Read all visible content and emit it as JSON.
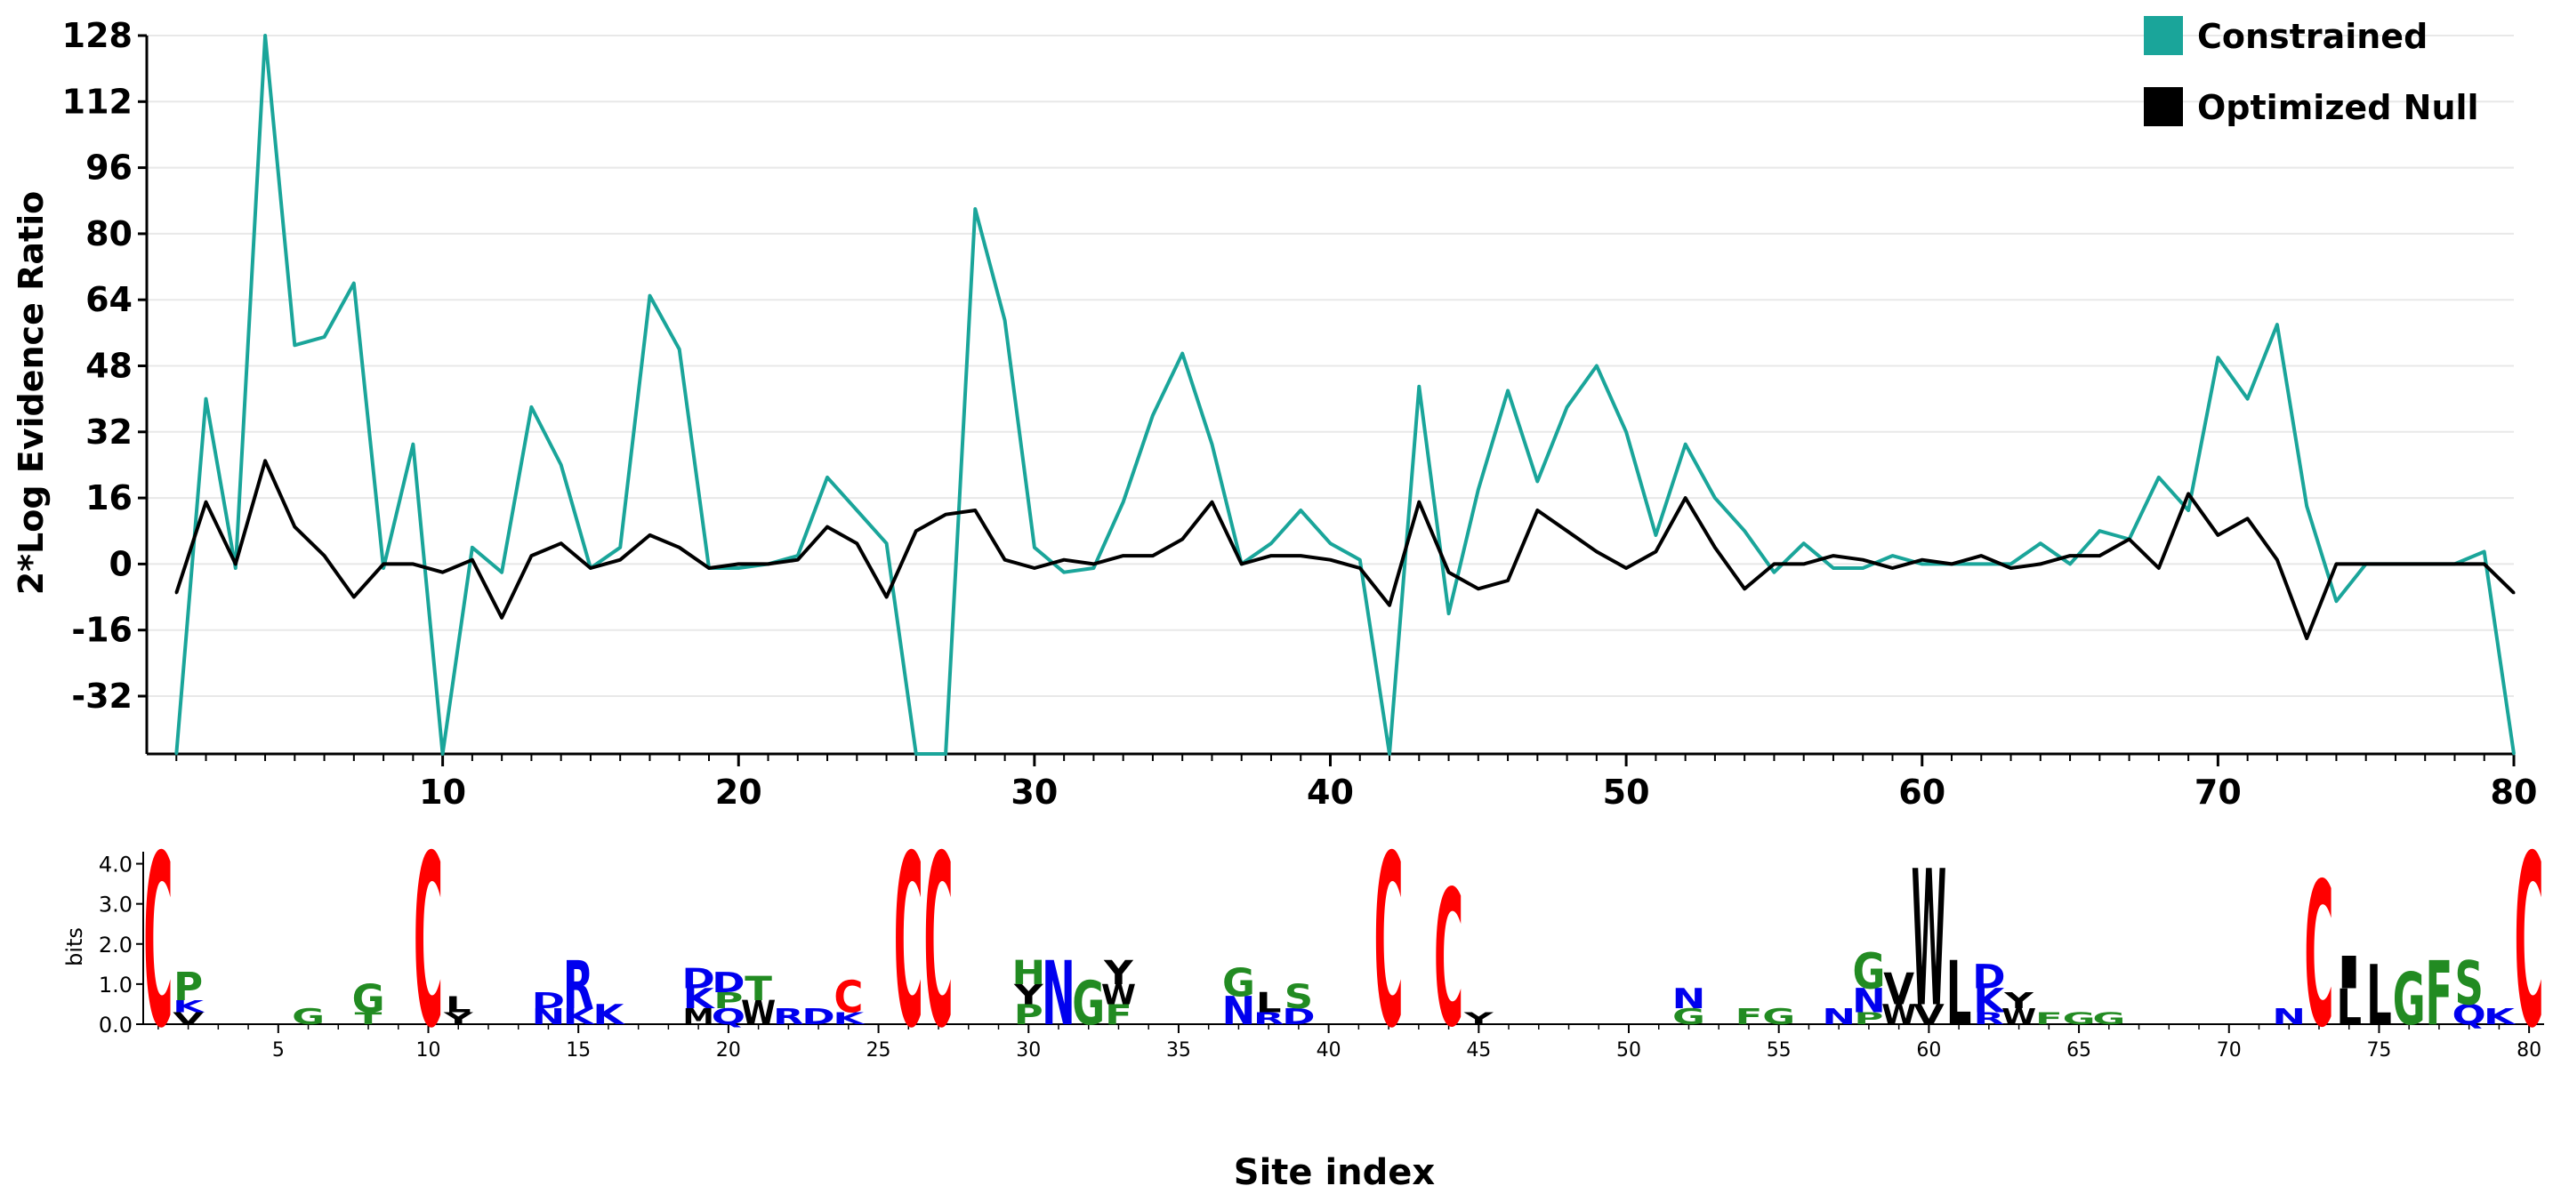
{
  "chart_data": [
    {
      "type": "line",
      "ylabel": "2*Log Evidence Ratio",
      "xlabel": "Site index",
      "ylim": [
        -46,
        128
      ],
      "xlim": [
        0,
        80
      ],
      "y_ticks": [
        "128",
        "112",
        "96",
        "80",
        "64",
        "48",
        "32",
        "16",
        "0",
        "-16",
        "-32"
      ],
      "x_ticks": [
        "10",
        "20",
        "30",
        "40",
        "50",
        "60",
        "70",
        "80"
      ],
      "grid": true,
      "legend": [
        {
          "name": "Constrained",
          "color": "#1aa59a"
        },
        {
          "name": "Optimized Null",
          "color": "#000000"
        }
      ],
      "x": [
        1,
        2,
        3,
        4,
        5,
        6,
        7,
        8,
        9,
        10,
        11,
        12,
        13,
        14,
        15,
        16,
        17,
        18,
        19,
        20,
        21,
        22,
        23,
        24,
        25,
        26,
        27,
        28,
        29,
        30,
        31,
        32,
        33,
        34,
        35,
        36,
        37,
        38,
        39,
        40,
        41,
        42,
        43,
        44,
        45,
        46,
        47,
        48,
        49,
        50,
        51,
        52,
        53,
        54,
        55,
        56,
        57,
        58,
        59,
        60,
        61,
        62,
        63,
        64,
        65,
        66,
        67,
        68,
        69,
        70,
        71,
        72,
        73,
        74,
        75,
        76,
        77,
        78,
        79,
        80
      ],
      "series": [
        {
          "name": "Constrained",
          "color": "#1aa59a",
          "values": [
            -46,
            40,
            -1,
            128,
            53,
            55,
            68,
            -1,
            29,
            -46,
            4,
            -2,
            38,
            24,
            -1,
            4,
            65,
            52,
            -1,
            -1,
            0,
            2,
            21,
            13,
            5,
            -46,
            -46,
            86,
            59,
            4,
            -2,
            -1,
            15,
            36,
            51,
            29,
            0,
            5,
            13,
            5,
            1,
            -46,
            43,
            -12,
            18,
            42,
            20,
            38,
            48,
            32,
            7,
            29,
            16,
            8,
            -2,
            5,
            -1,
            -1,
            2,
            0,
            0,
            0,
            0,
            5,
            0,
            8,
            6,
            21,
            13,
            50,
            40,
            58,
            14,
            -9,
            0,
            0,
            0,
            0,
            3,
            -46
          ]
        },
        {
          "name": "Optimized Null",
          "color": "#000000",
          "values": [
            -7,
            15,
            0,
            25,
            9,
            2,
            -8,
            0,
            0,
            -2,
            1,
            -13,
            2,
            5,
            -1,
            1,
            7,
            4,
            -1,
            0,
            0,
            1,
            9,
            5,
            -8,
            8,
            12,
            13,
            1,
            -1,
            1,
            0,
            2,
            2,
            6,
            15,
            0,
            2,
            2,
            1,
            -1,
            -10,
            15,
            -2,
            -6,
            -4,
            13,
            8,
            3,
            -1,
            3,
            16,
            4,
            -6,
            0,
            0,
            2,
            1,
            -1,
            1,
            0,
            2,
            -1,
            0,
            2,
            2,
            6,
            -1,
            17,
            7,
            11,
            1,
            -18,
            0,
            0,
            0,
            0,
            0,
            0,
            -7
          ]
        }
      ]
    },
    {
      "type": "sequence-logo",
      "ylabel": "bits",
      "ylim": [
        0,
        4.3
      ],
      "y_ticks": [
        "4.0",
        "3.0",
        "2.0",
        "1.0",
        "0.0"
      ],
      "x_ticks": [
        "5",
        "10",
        "15",
        "20",
        "25",
        "30",
        "35",
        "40",
        "45",
        "50",
        "55",
        "60",
        "65",
        "70",
        "75",
        "80"
      ],
      "colors": {
        "C": "#ff0000",
        "P": "#228b22",
        "G": "#228b22",
        "T": "#228b22",
        "S": "#228b22",
        "A": "#228b22",
        "F": "#228b22",
        "R": "#0000ee",
        "K": "#0000ee",
        "N": "#0000ee",
        "D": "#0000ee",
        "E": "#0000ee",
        "Q": "#0000ee",
        "H": "#228b22",
        "L": "#000000",
        "W": "#000000",
        "Y": "#000000",
        "I": "#000000",
        "V": "#000000",
        "M": "#000000"
      },
      "positions": [
        {
          "site": 1,
          "stack": [
            [
              "C",
              4.3
            ]
          ]
        },
        {
          "site": 2,
          "stack": [
            [
              "V",
              0.3
            ],
            [
              "K",
              0.3
            ],
            [
              "P",
              0.7
            ]
          ]
        },
        {
          "site": 6,
          "stack": [
            [
              "G",
              0.4
            ]
          ]
        },
        {
          "site": 8,
          "stack": [
            [
              "T",
              0.3
            ],
            [
              "G",
              0.7
            ]
          ]
        },
        {
          "site": 10,
          "stack": [
            [
              "C",
              4.3
            ]
          ]
        },
        {
          "site": 11,
          "stack": [
            [
              "Y",
              0.3
            ],
            [
              "L",
              0.4
            ]
          ]
        },
        {
          "site": 14,
          "stack": [
            [
              "N",
              0.4
            ],
            [
              "D",
              0.4
            ]
          ]
        },
        {
          "site": 15,
          "stack": [
            [
              "K",
              0.4
            ],
            [
              "R",
              1.2
            ]
          ]
        },
        {
          "site": 16,
          "stack": [
            [
              "K",
              0.5
            ]
          ]
        },
        {
          "site": 19,
          "stack": [
            [
              "M",
              0.4
            ],
            [
              "K",
              0.5
            ],
            [
              "D",
              0.5
            ]
          ]
        },
        {
          "site": 20,
          "stack": [
            [
              "Q",
              0.4
            ],
            [
              "P",
              0.4
            ],
            [
              "D",
              0.5
            ]
          ]
        },
        {
          "site": 21,
          "stack": [
            [
              "W",
              0.6
            ],
            [
              "T",
              0.6
            ]
          ]
        },
        {
          "site": 22,
          "stack": [
            [
              "R",
              0.4
            ]
          ]
        },
        {
          "site": 23,
          "stack": [
            [
              "D",
              0.4
            ]
          ]
        },
        {
          "site": 24,
          "stack": [
            [
              "K",
              0.3
            ],
            [
              "C",
              0.8
            ]
          ]
        },
        {
          "site": 26,
          "stack": [
            [
              "C",
              4.3
            ]
          ]
        },
        {
          "site": 27,
          "stack": [
            [
              "C",
              4.3
            ]
          ]
        },
        {
          "site": 30,
          "stack": [
            [
              "P",
              0.5
            ],
            [
              "Y",
              0.5
            ],
            [
              "H",
              0.6
            ]
          ]
        },
        {
          "site": 31,
          "stack": [
            [
              "N",
              1.6
            ]
          ]
        },
        {
          "site": 32,
          "stack": [
            [
              "G",
              1.1
            ]
          ]
        },
        {
          "site": 33,
          "stack": [
            [
              "F",
              0.5
            ],
            [
              "W",
              0.5
            ],
            [
              "Y",
              0.6
            ]
          ]
        },
        {
          "site": 37,
          "stack": [
            [
              "N",
              0.7
            ],
            [
              "G",
              0.7
            ]
          ]
        },
        {
          "site": 38,
          "stack": [
            [
              "R",
              0.3
            ],
            [
              "L",
              0.5
            ]
          ]
        },
        {
          "site": 39,
          "stack": [
            [
              "D",
              0.4
            ],
            [
              "S",
              0.6
            ]
          ]
        },
        {
          "site": 42,
          "stack": [
            [
              "C",
              4.3
            ]
          ]
        },
        {
          "site": 44,
          "stack": [
            [
              "C",
              3.4
            ]
          ]
        },
        {
          "site": 45,
          "stack": [
            [
              "Y",
              0.3
            ]
          ]
        },
        {
          "site": 52,
          "stack": [
            [
              "G",
              0.4
            ],
            [
              "N",
              0.5
            ]
          ]
        },
        {
          "site": 54,
          "stack": [
            [
              "F",
              0.4
            ]
          ]
        },
        {
          "site": 55,
          "stack": [
            [
              "G",
              0.4
            ]
          ]
        },
        {
          "site": 57,
          "stack": [
            [
              "N",
              0.4
            ]
          ]
        },
        {
          "site": 58,
          "stack": [
            [
              "P",
              0.3
            ],
            [
              "N",
              0.6
            ],
            [
              "G",
              0.9
            ]
          ]
        },
        {
          "site": 59,
          "stack": [
            [
              "W",
              0.5
            ],
            [
              "V",
              0.8
            ]
          ]
        },
        {
          "site": 60,
          "stack": [
            [
              "V",
              0.5
            ],
            [
              "W",
              3.4
            ]
          ]
        },
        {
          "site": 61,
          "stack": [
            [
              "L",
              1.6
            ]
          ]
        },
        {
          "site": 62,
          "stack": [
            [
              "R",
              0.3
            ],
            [
              "K",
              0.6
            ],
            [
              "D",
              0.6
            ]
          ]
        },
        {
          "site": 63,
          "stack": [
            [
              "W",
              0.4
            ],
            [
              "Y",
              0.4
            ]
          ]
        },
        {
          "site": 64,
          "stack": [
            [
              "F",
              0.3
            ]
          ]
        },
        {
          "site": 65,
          "stack": [
            [
              "G",
              0.3
            ]
          ]
        },
        {
          "site": 66,
          "stack": [
            [
              "G",
              0.3
            ]
          ]
        },
        {
          "site": 72,
          "stack": [
            [
              "N",
              0.4
            ]
          ]
        },
        {
          "site": 73,
          "stack": [
            [
              "C",
              3.6
            ]
          ]
        },
        {
          "site": 74,
          "stack": [
            [
              "L",
              0.9
            ],
            [
              "I",
              0.8
            ]
          ]
        },
        {
          "site": 75,
          "stack": [
            [
              "L",
              1.5
            ]
          ]
        },
        {
          "site": 76,
          "stack": [
            [
              "G",
              1.3
            ]
          ]
        },
        {
          "site": 77,
          "stack": [
            [
              "F",
              1.6
            ]
          ]
        },
        {
          "site": 78,
          "stack": [
            [
              "Q",
              0.5
            ],
            [
              "S",
              1.1
            ]
          ]
        },
        {
          "site": 79,
          "stack": [
            [
              "K",
              0.4
            ]
          ]
        },
        {
          "site": 80,
          "stack": [
            [
              "C",
              4.3
            ]
          ]
        }
      ]
    }
  ]
}
